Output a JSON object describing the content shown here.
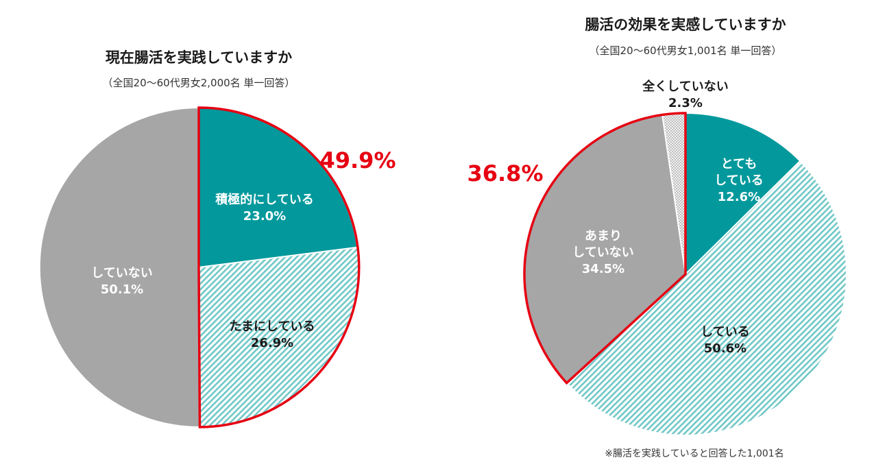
{
  "chart_data": [
    {
      "type": "pie",
      "title": "現在腸活を実践していますか",
      "subtitle": "（全国20～60代男女2,000名 単一回答）",
      "slices": [
        {
          "label": "積極的にしている",
          "value": 23.0,
          "display": "23.0%",
          "fill": "#03999c",
          "pattern": "solid",
          "text_color": "#ffffff"
        },
        {
          "label": "たまにしている",
          "value": 26.9,
          "display": "26.9%",
          "fill": "#6fc7c6",
          "pattern": "hatch",
          "text_color": "#1a1a1a"
        },
        {
          "label": "していない",
          "value": 50.1,
          "display": "50.1%",
          "fill": "#a6a6a6",
          "pattern": "solid",
          "text_color": "#ffffff"
        }
      ],
      "highlight": {
        "label": "49.9%",
        "value": 49.9,
        "slices": [
          0,
          1
        ],
        "color": "#e60012"
      }
    },
    {
      "type": "pie",
      "title": "腸活の効果を実感していますか",
      "subtitle": "（全国20～60代男女1,001名 単一回答）",
      "slices": [
        {
          "label": "とても\nしている",
          "value": 12.6,
          "display": "12.6%",
          "fill": "#03999c",
          "pattern": "solid",
          "text_color": "#ffffff"
        },
        {
          "label": "している",
          "value": 50.6,
          "display": "50.6%",
          "fill": "#6fc7c6",
          "pattern": "hatch",
          "text_color": "#1a1a1a"
        },
        {
          "label": "あまり\nしていない",
          "value": 34.5,
          "display": "34.5%",
          "fill": "#a6a6a6",
          "pattern": "solid",
          "text_color": "#ffffff"
        },
        {
          "label": "全くしていない",
          "value": 2.3,
          "display": "2.3%",
          "fill": "#e8e8e8",
          "pattern": "dots",
          "text_color": "#1a1a1a"
        }
      ],
      "highlight": {
        "label": "36.8%",
        "value": 36.8,
        "slices": [
          2,
          3
        ],
        "color": "#e60012"
      },
      "footnote": "※腸活を実践していると回答した1,001名"
    }
  ]
}
